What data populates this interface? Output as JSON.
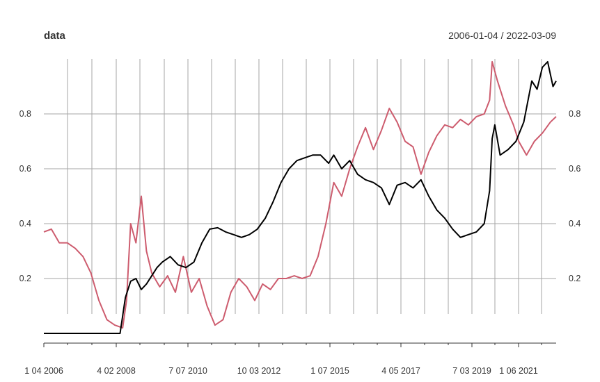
{
  "chart_data": {
    "type": "line",
    "title": "data",
    "date_range_label": "2006-01-04 / 2022-03-09",
    "xlabel": "",
    "ylabel": "",
    "grid": true,
    "x_tick_labels": [
      "1 04 2006",
      "4 02 2008",
      "7 07 2010",
      "10 03 2012",
      "1 07 2015",
      "4 05 2017",
      "7 03 2019",
      "1 06 2021"
    ],
    "y_ticks": [
      0.2,
      0.4,
      0.6,
      0.8
    ],
    "ylim": [
      0.0,
      1.0
    ],
    "xlim": [
      "2006-01-04",
      "2022-03-09"
    ],
    "series": [
      {
        "color": "#000000",
        "points": [
          [
            "2006-01-04",
            0.0
          ],
          [
            "2007-06-01",
            0.0
          ],
          [
            "2008-04-01",
            0.0
          ],
          [
            "2008-06-01",
            0.0
          ],
          [
            "2008-08-01",
            0.13
          ],
          [
            "2008-10-01",
            0.19
          ],
          [
            "2008-12-01",
            0.2
          ],
          [
            "2009-02-01",
            0.16
          ],
          [
            "2009-04-01",
            0.18
          ],
          [
            "2009-06-01",
            0.21
          ],
          [
            "2009-08-01",
            0.24
          ],
          [
            "2009-10-01",
            0.26
          ],
          [
            "2010-01-01",
            0.28
          ],
          [
            "2010-04-01",
            0.25
          ],
          [
            "2010-07-01",
            0.24
          ],
          [
            "2010-10-01",
            0.26
          ],
          [
            "2011-01-01",
            0.33
          ],
          [
            "2011-04-01",
            0.38
          ],
          [
            "2011-07-01",
            0.385
          ],
          [
            "2011-10-01",
            0.37
          ],
          [
            "2012-01-01",
            0.36
          ],
          [
            "2012-04-01",
            0.35
          ],
          [
            "2012-07-01",
            0.36
          ],
          [
            "2012-10-01",
            0.38
          ],
          [
            "2013-01-01",
            0.42
          ],
          [
            "2013-04-01",
            0.48
          ],
          [
            "2013-07-01",
            0.55
          ],
          [
            "2013-10-01",
            0.6
          ],
          [
            "2014-01-01",
            0.63
          ],
          [
            "2014-04-01",
            0.64
          ],
          [
            "2014-07-01",
            0.65
          ],
          [
            "2014-10-01",
            0.65
          ],
          [
            "2015-01-01",
            0.62
          ],
          [
            "2015-03-01",
            0.65
          ],
          [
            "2015-06-01",
            0.6
          ],
          [
            "2015-09-01",
            0.63
          ],
          [
            "2015-12-01",
            0.58
          ],
          [
            "2016-03-01",
            0.56
          ],
          [
            "2016-06-01",
            0.55
          ],
          [
            "2016-09-01",
            0.53
          ],
          [
            "2016-12-01",
            0.47
          ],
          [
            "2017-03-01",
            0.54
          ],
          [
            "2017-06-01",
            0.55
          ],
          [
            "2017-09-01",
            0.53
          ],
          [
            "2017-12-01",
            0.56
          ],
          [
            "2018-03-01",
            0.5
          ],
          [
            "2018-06-01",
            0.45
          ],
          [
            "2018-09-01",
            0.42
          ],
          [
            "2018-12-01",
            0.38
          ],
          [
            "2019-03-01",
            0.35
          ],
          [
            "2019-06-01",
            0.36
          ],
          [
            "2019-09-01",
            0.37
          ],
          [
            "2019-12-01",
            0.4
          ],
          [
            "2020-02-01",
            0.52
          ],
          [
            "2020-03-01",
            0.71
          ],
          [
            "2020-04-01",
            0.76
          ],
          [
            "2020-06-01",
            0.65
          ],
          [
            "2020-09-01",
            0.67
          ],
          [
            "2020-12-01",
            0.7
          ],
          [
            "2021-03-01",
            0.77
          ],
          [
            "2021-06-01",
            0.92
          ],
          [
            "2021-08-01",
            0.89
          ],
          [
            "2021-10-01",
            0.97
          ],
          [
            "2021-12-01",
            0.99
          ],
          [
            "2022-02-01",
            0.9
          ],
          [
            "2022-03-09",
            0.92
          ]
        ]
      },
      {
        "color": "#cd5c6e",
        "points": [
          [
            "2006-01-04",
            0.37
          ],
          [
            "2006-04-01",
            0.38
          ],
          [
            "2006-07-01",
            0.33
          ],
          [
            "2006-10-01",
            0.33
          ],
          [
            "2007-01-01",
            0.31
          ],
          [
            "2007-04-01",
            0.28
          ],
          [
            "2007-07-01",
            0.22
          ],
          [
            "2007-10-01",
            0.12
          ],
          [
            "2008-01-01",
            0.05
          ],
          [
            "2008-04-01",
            0.03
          ],
          [
            "2008-07-01",
            0.02
          ],
          [
            "2008-08-15",
            0.12
          ],
          [
            "2008-10-01",
            0.4
          ],
          [
            "2008-12-01",
            0.33
          ],
          [
            "2009-02-01",
            0.5
          ],
          [
            "2009-04-01",
            0.3
          ],
          [
            "2009-06-01",
            0.22
          ],
          [
            "2009-09-01",
            0.17
          ],
          [
            "2009-12-01",
            0.21
          ],
          [
            "2010-03-01",
            0.15
          ],
          [
            "2010-06-01",
            0.28
          ],
          [
            "2010-09-01",
            0.15
          ],
          [
            "2010-12-01",
            0.2
          ],
          [
            "2011-03-01",
            0.1
          ],
          [
            "2011-06-01",
            0.03
          ],
          [
            "2011-09-01",
            0.05
          ],
          [
            "2011-12-01",
            0.15
          ],
          [
            "2012-03-01",
            0.2
          ],
          [
            "2012-06-01",
            0.17
          ],
          [
            "2012-09-01",
            0.12
          ],
          [
            "2012-12-01",
            0.18
          ],
          [
            "2013-03-01",
            0.16
          ],
          [
            "2013-06-01",
            0.2
          ],
          [
            "2013-09-01",
            0.2
          ],
          [
            "2013-12-01",
            0.21
          ],
          [
            "2014-03-01",
            0.2
          ],
          [
            "2014-06-01",
            0.21
          ],
          [
            "2014-09-01",
            0.28
          ],
          [
            "2014-12-01",
            0.4
          ],
          [
            "2015-03-01",
            0.55
          ],
          [
            "2015-06-01",
            0.5
          ],
          [
            "2015-09-01",
            0.6
          ],
          [
            "2015-12-01",
            0.68
          ],
          [
            "2016-03-01",
            0.75
          ],
          [
            "2016-06-01",
            0.67
          ],
          [
            "2016-09-01",
            0.74
          ],
          [
            "2016-12-01",
            0.82
          ],
          [
            "2017-03-01",
            0.77
          ],
          [
            "2017-06-01",
            0.7
          ],
          [
            "2017-09-01",
            0.68
          ],
          [
            "2017-12-01",
            0.58
          ],
          [
            "2018-03-01",
            0.66
          ],
          [
            "2018-06-01",
            0.72
          ],
          [
            "2018-09-01",
            0.76
          ],
          [
            "2018-12-01",
            0.75
          ],
          [
            "2019-03-01",
            0.78
          ],
          [
            "2019-06-01",
            0.76
          ],
          [
            "2019-09-01",
            0.79
          ],
          [
            "2019-12-01",
            0.8
          ],
          [
            "2020-02-01",
            0.85
          ],
          [
            "2020-03-01",
            0.99
          ],
          [
            "2020-05-01",
            0.92
          ],
          [
            "2020-08-01",
            0.83
          ],
          [
            "2020-11-01",
            0.76
          ],
          [
            "2021-01-01",
            0.7
          ],
          [
            "2021-04-01",
            0.65
          ],
          [
            "2021-07-01",
            0.7
          ],
          [
            "2021-10-01",
            0.73
          ],
          [
            "2022-01-01",
            0.77
          ],
          [
            "2022-03-09",
            0.79
          ]
        ]
      }
    ]
  }
}
